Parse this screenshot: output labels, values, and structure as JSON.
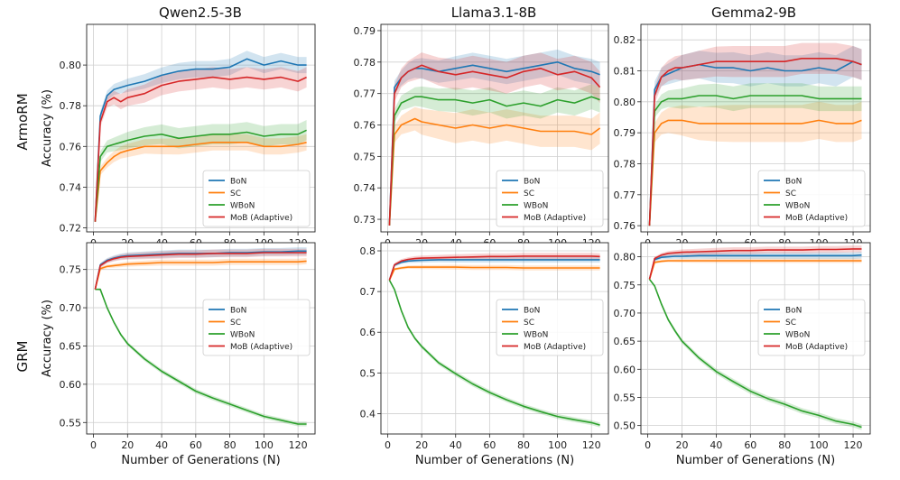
{
  "figure": {
    "row_labels": [
      "ArmoRM",
      "GRM"
    ],
    "column_titles": [
      "Qwen2.5-3B",
      "Llama3.1-8B",
      "Gemma2-9B"
    ]
  },
  "series_styles": [
    {
      "name": "BoN",
      "color": "#1f77b4"
    },
    {
      "name": "SC",
      "color": "#ff7f0e"
    },
    {
      "name": "WBoN",
      "color": "#2ca02c"
    },
    {
      "name": "MoB (Adaptive)",
      "color": "#d62728"
    }
  ],
  "chart_data": [
    {
      "type": "line",
      "row": "ArmoRM",
      "title": "Qwen2.5-3B",
      "xlabel": "",
      "ylabel": "Accuracy (%)",
      "xlim": [
        -4,
        130
      ],
      "ylim": [
        0.718,
        0.82
      ],
      "xticks": [
        0,
        20,
        40,
        60,
        80,
        100,
        120
      ],
      "yticks": [
        0.72,
        0.74,
        0.76,
        0.78,
        0.8
      ],
      "ytick_labels": [
        "0.72",
        "0.74",
        "0.76",
        "0.78",
        "0.80"
      ],
      "legend": "lower-right",
      "grid": true,
      "x": [
        1,
        4,
        8,
        12,
        16,
        20,
        30,
        40,
        50,
        60,
        70,
        80,
        90,
        100,
        110,
        120,
        125
      ],
      "series": [
        {
          "name": "BoN",
          "values": [
            0.723,
            0.775,
            0.785,
            0.788,
            0.789,
            0.79,
            0.792,
            0.795,
            0.797,
            0.798,
            0.798,
            0.799,
            0.803,
            0.8,
            0.802,
            0.8,
            0.8
          ],
          "band": 0.004
        },
        {
          "name": "SC",
          "values": [
            0.723,
            0.748,
            0.752,
            0.755,
            0.757,
            0.758,
            0.76,
            0.76,
            0.76,
            0.761,
            0.762,
            0.762,
            0.762,
            0.76,
            0.76,
            0.761,
            0.762
          ],
          "band": 0.004
        },
        {
          "name": "WBoN",
          "values": [
            0.723,
            0.755,
            0.76,
            0.761,
            0.762,
            0.763,
            0.765,
            0.766,
            0.764,
            0.765,
            0.766,
            0.766,
            0.767,
            0.765,
            0.766,
            0.766,
            0.768
          ],
          "band": 0.005
        },
        {
          "name": "MoB (Adaptive)",
          "values": [
            0.723,
            0.772,
            0.782,
            0.784,
            0.782,
            0.784,
            0.786,
            0.79,
            0.792,
            0.793,
            0.794,
            0.793,
            0.794,
            0.793,
            0.794,
            0.792,
            0.794
          ],
          "band": 0.005
        }
      ]
    },
    {
      "type": "line",
      "row": "ArmoRM",
      "title": "Llama3.1-8B",
      "xlabel": "",
      "ylabel": "",
      "xlim": [
        -4,
        130
      ],
      "ylim": [
        0.726,
        0.792
      ],
      "xticks": [
        0,
        20,
        40,
        60,
        80,
        100,
        120
      ],
      "yticks": [
        0.73,
        0.74,
        0.75,
        0.76,
        0.77,
        0.78,
        0.79
      ],
      "ytick_labels": [
        "0.73",
        "0.74",
        "0.75",
        "0.76",
        "0.77",
        "0.78",
        "0.79"
      ],
      "legend": "lower-right",
      "grid": true,
      "x": [
        1,
        4,
        8,
        12,
        16,
        20,
        30,
        40,
        50,
        60,
        70,
        80,
        90,
        100,
        110,
        120,
        125
      ],
      "series": [
        {
          "name": "BoN",
          "values": [
            0.728,
            0.772,
            0.775,
            0.777,
            0.778,
            0.778,
            0.777,
            0.778,
            0.779,
            0.778,
            0.777,
            0.778,
            0.779,
            0.78,
            0.778,
            0.777,
            0.776
          ],
          "band": 0.004
        },
        {
          "name": "SC",
          "values": [
            0.728,
            0.757,
            0.76,
            0.761,
            0.762,
            0.761,
            0.76,
            0.759,
            0.76,
            0.759,
            0.76,
            0.759,
            0.758,
            0.758,
            0.758,
            0.757,
            0.759
          ],
          "band": 0.005
        },
        {
          "name": "WBoN",
          "values": [
            0.728,
            0.763,
            0.767,
            0.768,
            0.769,
            0.769,
            0.768,
            0.768,
            0.767,
            0.768,
            0.766,
            0.767,
            0.766,
            0.768,
            0.767,
            0.769,
            0.768
          ],
          "band": 0.004
        },
        {
          "name": "MoB (Adaptive)",
          "values": [
            0.728,
            0.77,
            0.775,
            0.777,
            0.778,
            0.779,
            0.777,
            0.776,
            0.777,
            0.776,
            0.775,
            0.777,
            0.778,
            0.776,
            0.777,
            0.775,
            0.772
          ],
          "band": 0.005
        }
      ]
    },
    {
      "type": "line",
      "row": "ArmoRM",
      "title": "Gemma2-9B",
      "xlabel": "",
      "ylabel": "",
      "xlim": [
        -4,
        130
      ],
      "ylim": [
        0.758,
        0.825
      ],
      "xticks": [
        0,
        20,
        40,
        60,
        80,
        100,
        120
      ],
      "yticks": [
        0.76,
        0.77,
        0.78,
        0.79,
        0.8,
        0.81,
        0.82
      ],
      "ytick_labels": [
        "0.76",
        "0.77",
        "0.78",
        "0.79",
        "0.80",
        "0.81",
        "0.82"
      ],
      "legend": "lower-right",
      "grid": true,
      "x": [
        1,
        4,
        8,
        12,
        16,
        20,
        30,
        40,
        50,
        60,
        70,
        80,
        90,
        100,
        110,
        120,
        125
      ],
      "series": [
        {
          "name": "BoN",
          "values": [
            0.76,
            0.804,
            0.808,
            0.809,
            0.81,
            0.811,
            0.812,
            0.811,
            0.811,
            0.81,
            0.811,
            0.81,
            0.81,
            0.811,
            0.81,
            0.813,
            0.812
          ],
          "band": 0.005
        },
        {
          "name": "SC",
          "values": [
            0.76,
            0.79,
            0.793,
            0.794,
            0.794,
            0.794,
            0.793,
            0.793,
            0.793,
            0.793,
            0.793,
            0.793,
            0.793,
            0.794,
            0.793,
            0.793,
            0.794
          ],
          "band": 0.006
        },
        {
          "name": "WBoN",
          "values": [
            0.76,
            0.797,
            0.8,
            0.801,
            0.801,
            0.801,
            0.802,
            0.802,
            0.801,
            0.802,
            0.802,
            0.802,
            0.802,
            0.801,
            0.801,
            0.801,
            0.801
          ],
          "band": 0.004
        },
        {
          "name": "MoB (Adaptive)",
          "values": [
            0.76,
            0.802,
            0.808,
            0.81,
            0.811,
            0.811,
            0.812,
            0.813,
            0.813,
            0.813,
            0.813,
            0.813,
            0.814,
            0.814,
            0.814,
            0.813,
            0.812
          ],
          "band": 0.005
        }
      ]
    },
    {
      "type": "line",
      "row": "GRM",
      "title": "",
      "xlabel": "Number of Generations (N)",
      "ylabel": "Accuracy (%)",
      "xlim": [
        -4,
        130
      ],
      "ylim": [
        0.535,
        0.785
      ],
      "xticks": [
        0,
        20,
        40,
        60,
        80,
        100,
        120
      ],
      "yticks": [
        0.55,
        0.6,
        0.65,
        0.7,
        0.75
      ],
      "ytick_labels": [
        "0.55",
        "0.60",
        "0.65",
        "0.70",
        "0.75"
      ],
      "legend": "center-right",
      "grid": true,
      "x": [
        1,
        4,
        8,
        12,
        16,
        20,
        30,
        40,
        50,
        60,
        70,
        80,
        90,
        100,
        110,
        120,
        125
      ],
      "series": [
        {
          "name": "BoN",
          "values": [
            0.724,
            0.756,
            0.762,
            0.765,
            0.767,
            0.768,
            0.769,
            0.77,
            0.771,
            0.771,
            0.771,
            0.772,
            0.772,
            0.773,
            0.773,
            0.774,
            0.774
          ],
          "band": 0.005
        },
        {
          "name": "SC",
          "values": [
            0.724,
            0.751,
            0.754,
            0.755,
            0.756,
            0.757,
            0.758,
            0.759,
            0.759,
            0.759,
            0.759,
            0.76,
            0.76,
            0.76,
            0.76,
            0.76,
            0.761
          ],
          "band": 0.004
        },
        {
          "name": "WBoN",
          "values": [
            0.724,
            0.724,
            0.7,
            0.681,
            0.665,
            0.653,
            0.633,
            0.617,
            0.604,
            0.591,
            0.582,
            0.574,
            0.566,
            0.558,
            0.553,
            0.548,
            0.548
          ],
          "band": 0.003
        },
        {
          "name": "MoB (Adaptive)",
          "values": [
            0.724,
            0.755,
            0.761,
            0.764,
            0.766,
            0.767,
            0.768,
            0.769,
            0.77,
            0.77,
            0.771,
            0.771,
            0.771,
            0.772,
            0.772,
            0.772,
            0.772
          ],
          "band": 0.005
        }
      ]
    },
    {
      "type": "line",
      "row": "GRM",
      "title": "",
      "xlabel": "Number of Generations (N)",
      "ylabel": "",
      "xlim": [
        -4,
        130
      ],
      "ylim": [
        0.35,
        0.82
      ],
      "xticks": [
        0,
        20,
        40,
        60,
        80,
        100,
        120
      ],
      "yticks": [
        0.4,
        0.5,
        0.6,
        0.7,
        0.8
      ],
      "ytick_labels": [
        "0.4",
        "0.5",
        "0.6",
        "0.7",
        "0.8"
      ],
      "legend": "center-right",
      "grid": true,
      "x": [
        1,
        4,
        8,
        12,
        16,
        20,
        30,
        40,
        50,
        60,
        70,
        80,
        90,
        100,
        110,
        120,
        125
      ],
      "series": [
        {
          "name": "BoN",
          "values": [
            0.728,
            0.765,
            0.772,
            0.775,
            0.776,
            0.777,
            0.778,
            0.778,
            0.778,
            0.778,
            0.778,
            0.778,
            0.778,
            0.778,
            0.778,
            0.778,
            0.778
          ],
          "band": 0.007
        },
        {
          "name": "SC",
          "values": [
            0.728,
            0.755,
            0.758,
            0.76,
            0.76,
            0.76,
            0.76,
            0.76,
            0.759,
            0.759,
            0.759,
            0.758,
            0.758,
            0.758,
            0.758,
            0.758,
            0.758
          ],
          "band": 0.006
        },
        {
          "name": "WBoN",
          "values": [
            0.728,
            0.705,
            0.653,
            0.612,
            0.585,
            0.565,
            0.525,
            0.498,
            0.473,
            0.452,
            0.434,
            0.418,
            0.405,
            0.393,
            0.385,
            0.378,
            0.372
          ],
          "band": 0.006
        },
        {
          "name": "MoB (Adaptive)",
          "values": [
            0.728,
            0.766,
            0.775,
            0.779,
            0.781,
            0.782,
            0.783,
            0.784,
            0.785,
            0.786,
            0.786,
            0.787,
            0.787,
            0.787,
            0.787,
            0.787,
            0.786
          ],
          "band": 0.008
        }
      ]
    },
    {
      "type": "line",
      "row": "GRM",
      "title": "",
      "xlabel": "Number of Generations (N)",
      "ylabel": "",
      "xlim": [
        -4,
        130
      ],
      "ylim": [
        0.485,
        0.825
      ],
      "xticks": [
        0,
        20,
        40,
        60,
        80,
        100,
        120
      ],
      "yticks": [
        0.5,
        0.55,
        0.6,
        0.65,
        0.7,
        0.75,
        0.8
      ],
      "ytick_labels": [
        "0.50",
        "0.55",
        "0.60",
        "0.65",
        "0.70",
        "0.75",
        "0.80"
      ],
      "legend": "center-right",
      "grid": true,
      "x": [
        1,
        4,
        8,
        12,
        16,
        20,
        30,
        40,
        50,
        60,
        70,
        80,
        90,
        100,
        110,
        120,
        125
      ],
      "series": [
        {
          "name": "BoN",
          "values": [
            0.76,
            0.795,
            0.799,
            0.8,
            0.801,
            0.801,
            0.802,
            0.802,
            0.802,
            0.802,
            0.802,
            0.802,
            0.802,
            0.802,
            0.802,
            0.802,
            0.803
          ],
          "band": 0.006
        },
        {
          "name": "SC",
          "values": [
            0.76,
            0.79,
            0.792,
            0.793,
            0.793,
            0.793,
            0.793,
            0.793,
            0.793,
            0.793,
            0.793,
            0.793,
            0.793,
            0.793,
            0.793,
            0.793,
            0.793
          ],
          "band": 0.004
        },
        {
          "name": "WBoN",
          "values": [
            0.76,
            0.748,
            0.716,
            0.688,
            0.668,
            0.65,
            0.62,
            0.596,
            0.578,
            0.561,
            0.548,
            0.538,
            0.526,
            0.518,
            0.508,
            0.502,
            0.497
          ],
          "band": 0.005
        },
        {
          "name": "MoB (Adaptive)",
          "values": [
            0.76,
            0.797,
            0.803,
            0.806,
            0.807,
            0.808,
            0.809,
            0.81,
            0.811,
            0.811,
            0.812,
            0.812,
            0.812,
            0.813,
            0.813,
            0.814,
            0.814
          ],
          "band": 0.006
        }
      ]
    }
  ]
}
